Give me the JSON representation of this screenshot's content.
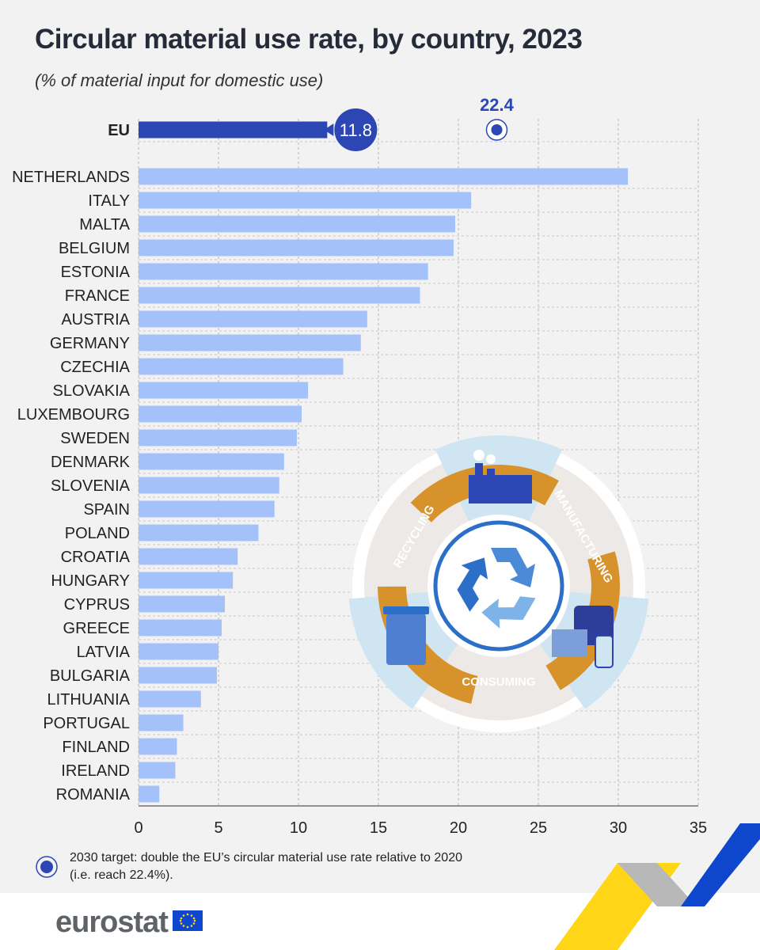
{
  "title": "Circular material use rate, by country, 2023",
  "subtitle": "(% of material input for domestic use)",
  "chart_data": {
    "type": "bar",
    "orientation": "horizontal",
    "categories": [
      "EU",
      "NETHERLANDS",
      "ITALY",
      "MALTA",
      "BELGIUM",
      "ESTONIA",
      "FRANCE",
      "AUSTRIA",
      "GERMANY",
      "CZECHIA",
      "SLOVAKIA",
      "LUXEMBOURG",
      "SWEDEN",
      "DENMARK",
      "SLOVENIA",
      "SPAIN",
      "POLAND",
      "CROATIA",
      "HUNGARY",
      "CYPRUS",
      "GREECE",
      "LATVIA",
      "BULGARIA",
      "LITHUANIA",
      "PORTUGAL",
      "FINLAND",
      "IRELAND",
      "ROMANIA"
    ],
    "values": [
      11.8,
      30.6,
      20.8,
      19.8,
      19.7,
      18.1,
      17.6,
      14.3,
      13.9,
      12.8,
      10.6,
      10.2,
      9.9,
      9.1,
      8.8,
      8.5,
      7.5,
      6.2,
      5.9,
      5.4,
      5.2,
      5.0,
      4.9,
      3.9,
      2.8,
      2.4,
      2.3,
      1.3
    ],
    "highlight": "EU",
    "eu_label": "11.8",
    "target": {
      "value": 22.4,
      "label": "22.4"
    },
    "xlim": [
      0,
      35
    ],
    "xticks": [
      "0",
      "5",
      "10",
      "15",
      "20",
      "25",
      "30",
      "35"
    ],
    "grid": true,
    "colors": {
      "eu": "#2c46b4",
      "countries": "#a4c2f9",
      "eu_label_bg": "#2c46b4",
      "target": "#2c46b4"
    }
  },
  "infographic": {
    "recycling": "RECYCLING",
    "manufacturing": "MANUFACTURING",
    "consuming": "CONSUMING",
    "ring_color": "#d7922b"
  },
  "note": {
    "line1": "2030 target: double the EU’s circular material use rate relative to 2020",
    "line2": "(i.e. reach 22.4%)."
  },
  "logo": "eurostat"
}
